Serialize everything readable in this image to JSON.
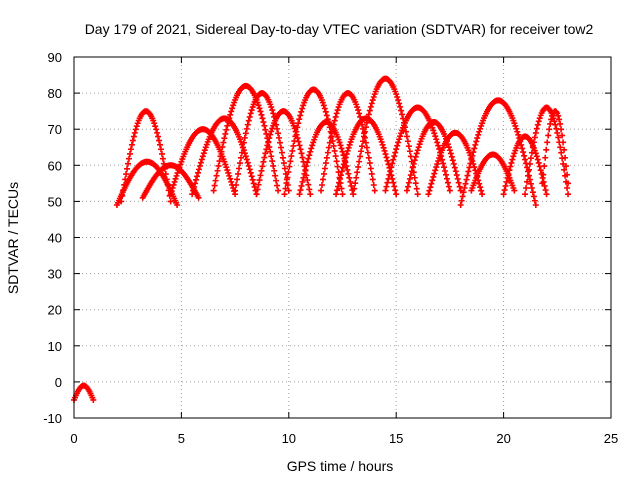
{
  "chart_data": {
    "type": "scatter",
    "title": "Day 179 of 2021, Sidereal Day-to-day VTEC variation (SDTVAR) for receiver tow2",
    "xlabel": "GPS time / hours",
    "ylabel": "SDTVAR / TECUs",
    "xlim": [
      0,
      25
    ],
    "ylim": [
      -10,
      90
    ],
    "grid": true,
    "marker": "+",
    "x_ticks": [
      0,
      5,
      10,
      15,
      20,
      25
    ],
    "y_ticks": [
      -10,
      0,
      10,
      20,
      30,
      40,
      50,
      60,
      70,
      80,
      90
    ],
    "x_tick_labels": [
      "0",
      "5",
      "10",
      "15",
      "20",
      "25"
    ],
    "y_tick_labels": [
      "-10",
      "0",
      "10",
      "20",
      "30",
      "40",
      "50",
      "60",
      "70",
      "80",
      "90"
    ],
    "series": [
      {
        "name": "SDTVAR",
        "color": "#ff0000",
        "arcs": [
          {
            "start": 0.0,
            "end": 0.9,
            "low": -5,
            "peak": -1
          },
          {
            "start": 2.0,
            "end": 4.8,
            "low": 49,
            "peak": 61
          },
          {
            "start": 2.2,
            "end": 4.5,
            "low": 50,
            "peak": 75
          },
          {
            "start": 3.2,
            "end": 5.8,
            "low": 51,
            "peak": 60
          },
          {
            "start": 4.5,
            "end": 7.5,
            "low": 52,
            "peak": 70
          },
          {
            "start": 5.5,
            "end": 8.5,
            "low": 52,
            "peak": 73
          },
          {
            "start": 6.5,
            "end": 9.5,
            "low": 53,
            "peak": 82
          },
          {
            "start": 7.5,
            "end": 10.0,
            "low": 53,
            "peak": 80
          },
          {
            "start": 8.5,
            "end": 11.0,
            "low": 52,
            "peak": 75
          },
          {
            "start": 9.8,
            "end": 12.5,
            "low": 52,
            "peak": 81
          },
          {
            "start": 10.5,
            "end": 13.0,
            "low": 52,
            "peak": 72
          },
          {
            "start": 11.5,
            "end": 14.0,
            "low": 53,
            "peak": 80
          },
          {
            "start": 12.2,
            "end": 15.0,
            "low": 52,
            "peak": 73
          },
          {
            "start": 13.0,
            "end": 16.0,
            "low": 52,
            "peak": 84
          },
          {
            "start": 14.5,
            "end": 17.5,
            "low": 53,
            "peak": 76
          },
          {
            "start": 15.5,
            "end": 18.0,
            "low": 53,
            "peak": 72
          },
          {
            "start": 16.5,
            "end": 19.0,
            "low": 52,
            "peak": 69
          },
          {
            "start": 18.0,
            "end": 21.5,
            "low": 49,
            "peak": 78
          },
          {
            "start": 18.5,
            "end": 20.5,
            "low": 53,
            "peak": 63
          },
          {
            "start": 20.0,
            "end": 22.0,
            "low": 52,
            "peak": 68
          },
          {
            "start": 21.0,
            "end": 23.0,
            "low": 52,
            "peak": 76
          },
          {
            "start": 21.8,
            "end": 23.0,
            "low": 55,
            "peak": 75
          }
        ]
      }
    ]
  }
}
